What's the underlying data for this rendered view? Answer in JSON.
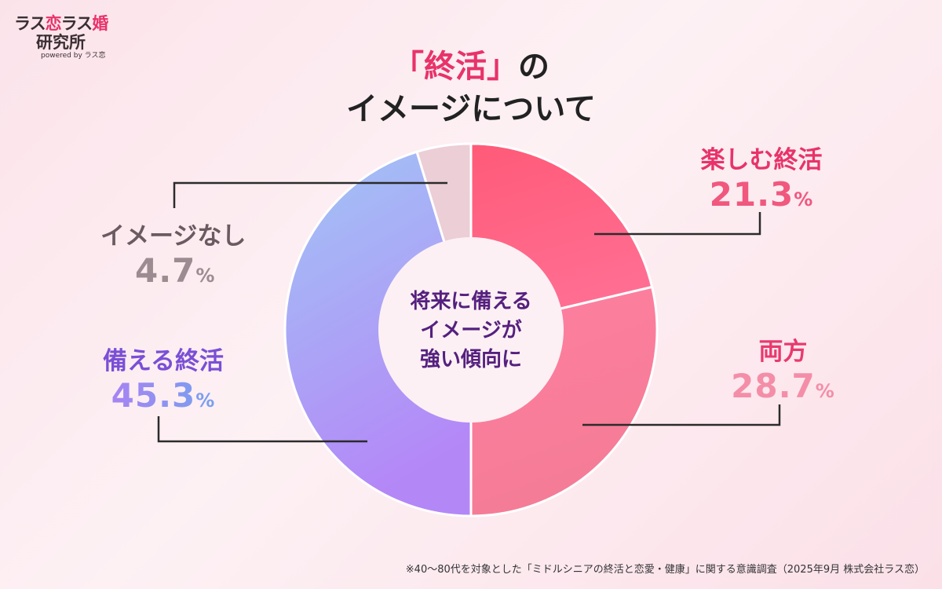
{
  "logo": {
    "line1_a": "ラス",
    "line1_b": "恋",
    "line1_c": "ラス",
    "line1_d": "婚",
    "line2": "研究所",
    "line3": "powered by ラス恋"
  },
  "title": {
    "quoted": "「終活」",
    "suffix": "の",
    "line2": "イメージについて"
  },
  "center_text": [
    "将来に備える",
    "イメージが",
    "強い傾向に"
  ],
  "footnote": "※40〜80代を対象とした「ミドルシニアの終活と恋愛・健康」に関する意識調査（2025年9月 株式会社ラス恋）",
  "chart_data": {
    "type": "pie",
    "variant": "donut",
    "title": "「終活」のイメージについて",
    "unit": "%",
    "slices": [
      {
        "label": "楽しむ終活",
        "value": 21.3,
        "display": "21.3",
        "colors": [
          "#ff5a78",
          "#ff6f93"
        ],
        "label_color": "#e8336a",
        "pct_color": "#f0587e"
      },
      {
        "label": "両方",
        "value": 28.7,
        "display": "28.7",
        "colors": [
          "#ff7fa0",
          "#f47c96"
        ],
        "label_color": "#e83a6e",
        "pct_color": "#f48ea8"
      },
      {
        "label": "備える終活",
        "value": 45.3,
        "display": "45.3",
        "colors": [
          "#a1c6f5",
          "#b487f7"
        ],
        "label_color": "#7a4fd6",
        "pct_color": "#9c7bef"
      },
      {
        "label": "イメージなし",
        "value": 4.7,
        "display": "4.7",
        "colors": [
          "#ecced6",
          "#ecced6"
        ],
        "label_color": "#6b5a60",
        "pct_color": "#9c8c92"
      }
    ]
  }
}
